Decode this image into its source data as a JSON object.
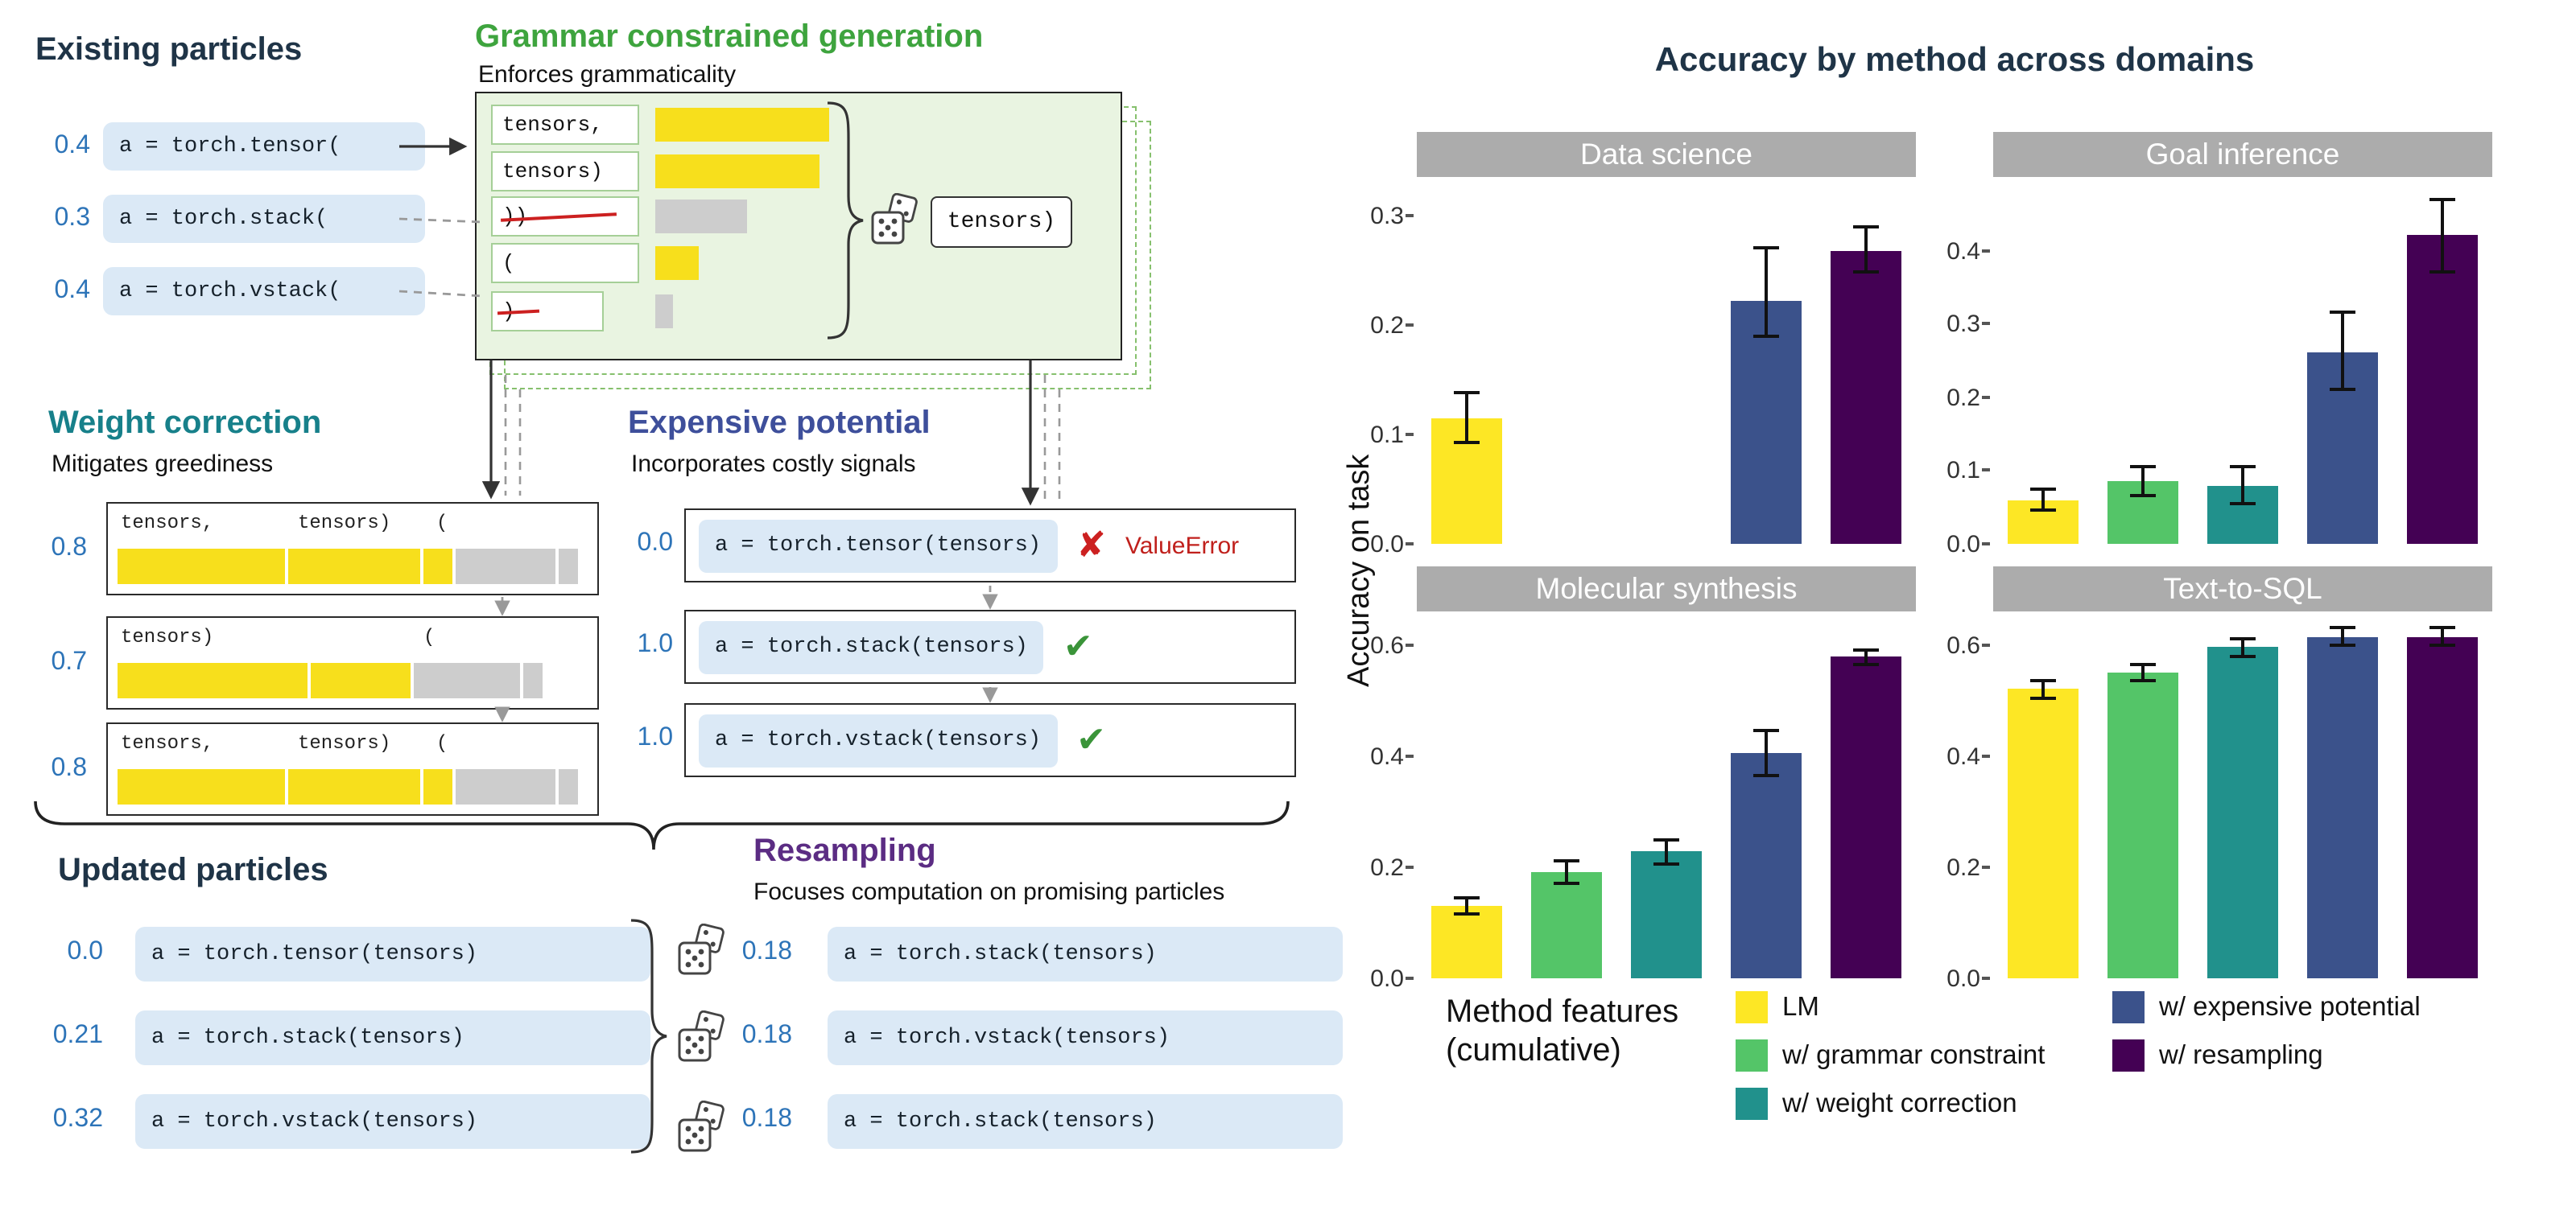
{
  "icons": {
    "cross": "✘",
    "check": "✔"
  },
  "diagram": {
    "existing": {
      "title": "Existing particles",
      "particles": [
        {
          "weight": "0.4",
          "code": "a = torch.tensor("
        },
        {
          "weight": "0.3",
          "code": "a = torch.stack("
        },
        {
          "weight": "0.4",
          "code": "a = torch.vstack("
        }
      ]
    },
    "grammar": {
      "title": "Grammar constrained generation",
      "subtitle": "Enforces grammaticality",
      "tokens": [
        {
          "token": "tensors,"
        },
        {
          "token": "tensors)"
        },
        {
          "token": "))"
        },
        {
          "token": "("
        },
        {
          "token": ")"
        }
      ],
      "sampled_token": "tensors)"
    },
    "weight_correction": {
      "title": "Weight correction",
      "subtitle": "Mitigates greediness",
      "boxes": [
        {
          "weight": "0.8",
          "tokens": [
            "tensors,",
            "tensors)",
            "("
          ]
        },
        {
          "weight": "0.7",
          "tokens": [
            "tensors)",
            "("
          ]
        },
        {
          "weight": "0.8",
          "tokens": [
            "tensors,",
            "tensors)",
            "("
          ]
        }
      ]
    },
    "expensive_potential": {
      "title": "Expensive potential",
      "subtitle": "Incorporates costly signals",
      "rows": [
        {
          "weight": "0.0",
          "code": "a = torch.tensor(tensors)",
          "status": "fail",
          "status_label": "ValueError"
        },
        {
          "weight": "1.0",
          "code": "a = torch.stack(tensors)",
          "status": "pass",
          "status_label": ""
        },
        {
          "weight": "1.0",
          "code": "a = torch.vstack(tensors)",
          "status": "pass",
          "status_label": ""
        }
      ]
    },
    "updated": {
      "title": "Updated particles",
      "particles": [
        {
          "weight": "0.0",
          "code": "a = torch.tensor(tensors)"
        },
        {
          "weight": "0.21",
          "code": "a = torch.stack(tensors)"
        },
        {
          "weight": "0.32",
          "code": "a = torch.vstack(tensors)"
        }
      ]
    },
    "resampling": {
      "title": "Resampling",
      "subtitle": "Focuses computation on promising particles",
      "particles": [
        {
          "weight": "0.18",
          "code": "a = torch.stack(tensors)"
        },
        {
          "weight": "0.18",
          "code": "a = torch.vstack(tensors)"
        },
        {
          "weight": "0.18",
          "code": "a = torch.stack(tensors)"
        }
      ]
    }
  },
  "chart": {
    "title": "Accuracy by method across domains",
    "ylabel": "Accuracy on task",
    "legend": {
      "heading_line1": "Method features",
      "heading_line2": "(cumulative)",
      "items": [
        {
          "label": "LM",
          "color": "#FDE725"
        },
        {
          "label": "w/ grammar constraint",
          "color": "#54C568"
        },
        {
          "label": "w/ weight correction",
          "color": "#21918C"
        },
        {
          "label": "w/ expensive potential",
          "color": "#3B528B"
        },
        {
          "label": "w/ resampling",
          "color": "#440154"
        }
      ]
    }
  },
  "chart_data": [
    {
      "type": "bar",
      "title": "Data science",
      "categories": [
        "LM",
        "w/ grammar constraint",
        "w/ weight correction",
        "w/ expensive potential",
        "w/ resampling"
      ],
      "values": [
        0.115,
        null,
        null,
        0.222,
        0.268
      ],
      "err_lo": [
        0.092,
        null,
        null,
        0.19,
        0.248
      ],
      "err_hi": [
        0.138,
        null,
        null,
        0.27,
        0.29
      ],
      "yticks": [
        0.0,
        0.1,
        0.2,
        0.3
      ],
      "ymax": 0.335,
      "xlabel": "",
      "ylabel": "Accuracy on task",
      "grid": false
    },
    {
      "type": "bar",
      "title": "Goal inference",
      "categories": [
        "LM",
        "w/ grammar constraint",
        "w/ weight correction",
        "w/ expensive potential",
        "w/ resampling"
      ],
      "values": [
        0.06,
        0.085,
        0.08,
        0.26,
        0.42
      ],
      "err_lo": [
        0.045,
        0.065,
        0.055,
        0.21,
        0.37
      ],
      "err_hi": [
        0.075,
        0.105,
        0.105,
        0.315,
        0.47
      ],
      "yticks": [
        0.0,
        0.1,
        0.2,
        0.3,
        0.4
      ],
      "ymax": 0.5,
      "xlabel": "",
      "ylabel": "Accuracy on task",
      "grid": false
    },
    {
      "type": "bar",
      "title": "Molecular synthesis",
      "categories": [
        "LM",
        "w/ grammar constraint",
        "w/ weight correction",
        "w/ expensive potential",
        "w/ resampling"
      ],
      "values": [
        0.13,
        0.19,
        0.23,
        0.405,
        0.58
      ],
      "err_lo": [
        0.115,
        0.17,
        0.205,
        0.365,
        0.565
      ],
      "err_hi": [
        0.145,
        0.21,
        0.25,
        0.445,
        0.59
      ],
      "yticks": [
        0.0,
        0.2,
        0.4,
        0.6
      ],
      "ymax": 0.66,
      "xlabel": "",
      "ylabel": "Accuracy on task",
      "grid": false
    },
    {
      "type": "bar",
      "title": "Text-to-SQL",
      "categories": [
        "LM",
        "w/ grammar constraint",
        "w/ weight correction",
        "w/ expensive potential",
        "w/ resampling"
      ],
      "values": [
        0.52,
        0.55,
        0.595,
        0.615,
        0.615
      ],
      "err_lo": [
        0.505,
        0.535,
        0.578,
        0.598,
        0.6
      ],
      "err_hi": [
        0.535,
        0.565,
        0.61,
        0.63,
        0.63
      ],
      "yticks": [
        0.0,
        0.2,
        0.4,
        0.6
      ],
      "ymax": 0.66,
      "xlabel": "",
      "ylabel": "Accuracy on task",
      "grid": false
    }
  ]
}
